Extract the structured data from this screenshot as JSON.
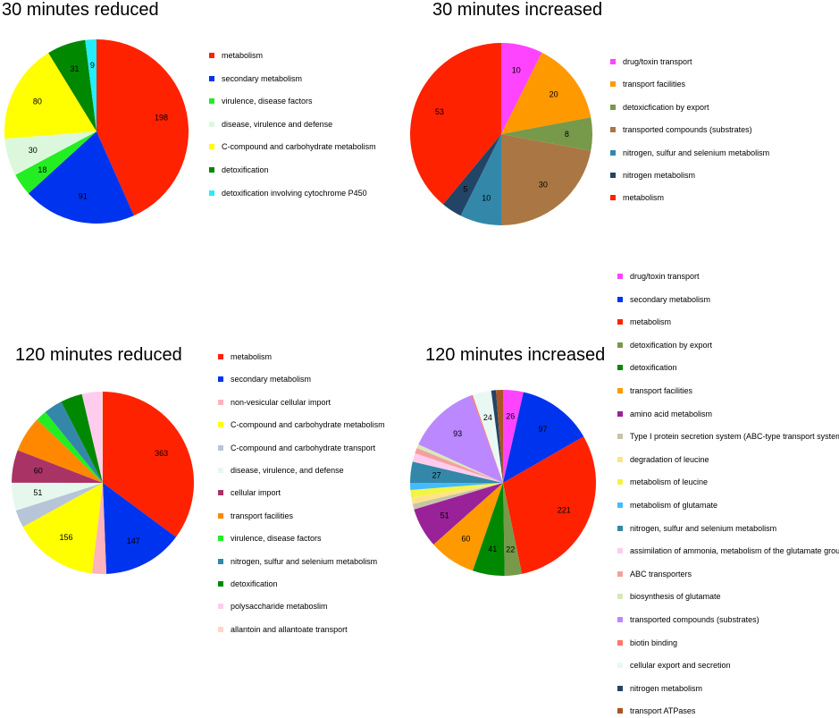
{
  "chart_data": [
    {
      "type": "pie",
      "title": "30 minutes reduced",
      "slices": [
        {
          "label": "metabolism",
          "value": 198,
          "color": "#ff2200",
          "shown": "198"
        },
        {
          "label": "secondary metabolism",
          "value": 91,
          "color": "#0033ee",
          "shown": "91"
        },
        {
          "label": "virulence, disease factors",
          "value": 18,
          "color": "#22ee22",
          "shown": "18"
        },
        {
          "label": "disease, virulence and defense",
          "value": 30,
          "color": "#dcf8dc",
          "shown": "30"
        },
        {
          "label": "C-compound and carbohydrate metabolism",
          "value": 80,
          "color": "#ffff00",
          "shown": "80"
        },
        {
          "label": "detoxification",
          "value": 31,
          "color": "#008800",
          "shown": "31"
        },
        {
          "label": "detoxification involving cytochrome P450",
          "value": 9,
          "color": "#22eeff",
          "shown": "9"
        }
      ]
    },
    {
      "type": "pie",
      "title": "30 minutes increased",
      "slices": [
        {
          "label": "drug/toxin transport",
          "value": 10,
          "color": "#ff44ff",
          "shown": "10"
        },
        {
          "label": "transport facilities",
          "value": 20,
          "color": "#ff9900",
          "shown": "20"
        },
        {
          "label": "detoxicfication by export",
          "value": 8,
          "color": "#77994a",
          "shown": "8"
        },
        {
          "label": "transported compounds (substrates)",
          "value": 30,
          "color": "#aa7744",
          "shown": "30"
        },
        {
          "label": "nitrogen, sulfur and selenium metabolism",
          "value": 10,
          "color": "#3388aa",
          "shown": "10"
        },
        {
          "label": "nitrogen metabolism",
          "value": 5,
          "color": "#224466",
          "shown": "5"
        },
        {
          "label": "metabolism",
          "value": 53,
          "color": "#ff2200",
          "shown": "53"
        }
      ]
    },
    {
      "type": "pie",
      "title": "120 minutes reduced",
      "slices": [
        {
          "label": "metabolism",
          "value": 363,
          "color": "#ff2200",
          "shown": "363"
        },
        {
          "label": "secondary metabolism",
          "value": 147,
          "color": "#0033ee",
          "shown": "147"
        },
        {
          "label": "non-vesicular cellular import",
          "value": 26,
          "color": "#ffb3bb",
          "shown": ""
        },
        {
          "label": "C-compound and carbohydrate metabolism",
          "value": 156,
          "color": "#ffff00",
          "shown": "156"
        },
        {
          "label": "C-compound and carbohydrate transport",
          "value": 32,
          "color": "#b8c4d8",
          "shown": ""
        },
        {
          "label": "disease, virulence, and defense",
          "value": 51,
          "color": "#e6f8ee",
          "shown": "51"
        },
        {
          "label": "cellular import",
          "value": 60,
          "color": "#aa3366",
          "shown": "60"
        },
        {
          "label": "transport facilities",
          "value": 66,
          "color": "#ff8800",
          "shown": ""
        },
        {
          "label": "virulence, disease factors",
          "value": 20,
          "color": "#22ee22",
          "shown": ""
        },
        {
          "label": "nitrogen, sulfur and selenium metabolism",
          "value": 34,
          "color": "#3388aa",
          "shown": ""
        },
        {
          "label": "detoxification",
          "value": 40,
          "color": "#008800",
          "shown": ""
        },
        {
          "label": "polysaccharide metaboslim",
          "value": 34,
          "color": "#ffccee",
          "shown": ""
        },
        {
          "label": "allantoin and allantoate transport",
          "value": 4,
          "color": "#ffd6cc",
          "shown": ""
        }
      ]
    },
    {
      "type": "pie",
      "title": "120 minutes increased",
      "slices": [
        {
          "label": "drug/toxin transport",
          "value": 26,
          "color": "#ff44ff",
          "shown": "26"
        },
        {
          "label": "secondary metabolism",
          "value": 97,
          "color": "#0033ee",
          "shown": "97"
        },
        {
          "label": "metabolism",
          "value": 221,
          "color": "#ff2200",
          "shown": "221"
        },
        {
          "label": "detoxification by export",
          "value": 22,
          "color": "#77994a",
          "shown": "22"
        },
        {
          "label": "detoxification",
          "value": 41,
          "color": "#008800",
          "shown": "41"
        },
        {
          "label": "transport facilities",
          "value": 60,
          "color": "#ff9900",
          "shown": "60"
        },
        {
          "label": "amino acid metabolism",
          "value": 51,
          "color": "#992299",
          "shown": "51"
        },
        {
          "label": "Type I protein secretion system (ABC-type transport systems)",
          "value": 7,
          "color": "#c8c4a8",
          "shown": ""
        },
        {
          "label": "degradation of leucine",
          "value": 8,
          "color": "#ffe38a",
          "shown": ""
        },
        {
          "label": "metabolism of leucine",
          "value": 10,
          "color": "#f4f444",
          "shown": ""
        },
        {
          "label": "metabolism of glutamate",
          "value": 9,
          "color": "#44bbff",
          "shown": ""
        },
        {
          "label": "nitrogen, sulfur and selenium metabolism",
          "value": 27,
          "color": "#3388aa",
          "shown": "27"
        },
        {
          "label": "assimilation of ammonia, metabolism of the glutamate group",
          "value": 11,
          "color": "#ffccee",
          "shown": ""
        },
        {
          "label": "ABC transporters",
          "value": 7,
          "color": "#f4a0a0",
          "shown": ""
        },
        {
          "label": "biosynthesis of glutamate",
          "value": 5,
          "color": "#d8e8b8",
          "shown": ""
        },
        {
          "label": "transported compounds (substrates)",
          "value": 93,
          "color": "#bb88ff",
          "shown": "93"
        },
        {
          "label": "biotin binding",
          "value": 2,
          "color": "#ff7766",
          "shown": ""
        },
        {
          "label": "cellular export and secretion",
          "value": 24,
          "color": "#eaf8f4",
          "shown": "24"
        },
        {
          "label": "nitrogen metabolism",
          "value": 6,
          "color": "#224466",
          "shown": ""
        },
        {
          "label": "transport ATPases",
          "value": 9,
          "color": "#aa5522",
          "shown": ""
        }
      ]
    }
  ]
}
